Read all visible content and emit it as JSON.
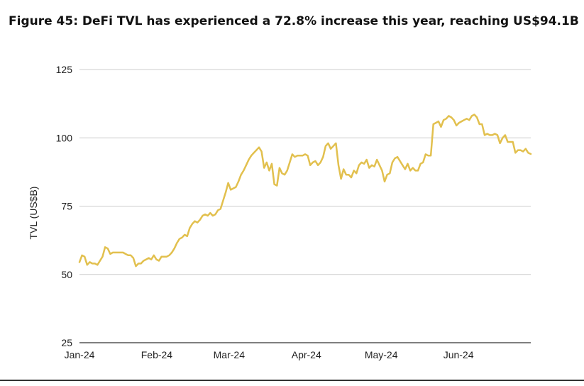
{
  "figure": {
    "title": "Figure 45: DeFi TVL has experienced a 72.8% increase this year, reaching US$94.1B"
  },
  "chart_data": {
    "type": "line",
    "title": "Figure 45: DeFi TVL has experienced a 72.8% increase this year, reaching US$94.1B",
    "xlabel": "",
    "ylabel": "TVL (US$B)",
    "ylim": [
      25,
      125
    ],
    "yticks": [
      25,
      50,
      75,
      100,
      125
    ],
    "xticks": [
      "Jan-24",
      "Feb-24",
      "Mar-24",
      "Apr-24",
      "May-24",
      "Jun-24"
    ],
    "grid": true,
    "legend": "none",
    "color": "#E2C04E",
    "x_start": "2024-01-01",
    "x_end": "2024-06-30",
    "series": [
      {
        "values": [
          54.5,
          57.0,
          56.5,
          53.5,
          54.5,
          54.0,
          54.0,
          53.5,
          55.0,
          56.5,
          60.0,
          59.5,
          57.5,
          58.0,
          58.0,
          58.0,
          58.0,
          58.0,
          57.5,
          57.0,
          57.0,
          56.0,
          53.0,
          54.0,
          54.0,
          55.0,
          55.5,
          56.0,
          55.5,
          57.0,
          55.5,
          55.0,
          56.5,
          56.5,
          56.5,
          57.0,
          58.0,
          59.5,
          61.5,
          63.0,
          63.5,
          64.5,
          64.0,
          67.0,
          68.5,
          69.5,
          69.0,
          70.0,
          71.5,
          72.0,
          71.5,
          72.5,
          71.5,
          72.0,
          73.5,
          74.0,
          77.0,
          80.0,
          83.5,
          81.0,
          81.5,
          82.0,
          84.0,
          86.5,
          88.0,
          90.0,
          92.0,
          93.5,
          94.5,
          95.5,
          96.5,
          95.0,
          89.0,
          91.0,
          88.0,
          90.5,
          83.0,
          82.5,
          89.0,
          87.0,
          86.5,
          88.0,
          91.0,
          94.0,
          93.0,
          93.5,
          93.5,
          93.5,
          94.0,
          93.5,
          90.0,
          91.0,
          91.5,
          90.0,
          91.0,
          93.0,
          97.0,
          98.0,
          96.0,
          97.0,
          98.0,
          90.0,
          85.0,
          88.5,
          86.5,
          86.5,
          85.5,
          88.0,
          87.0,
          90.0,
          91.0,
          90.5,
          92.0,
          89.0,
          90.0,
          89.5,
          92.0,
          90.0,
          88.0,
          84.0,
          86.5,
          87.0,
          91.0,
          92.5,
          93.0,
          91.5,
          90.0,
          88.5,
          90.5,
          88.0,
          89.0,
          88.0,
          88.0,
          90.5,
          91.0,
          94.0,
          93.5,
          93.5,
          105.0,
          105.5,
          106.0,
          104.0,
          106.5,
          107.0,
          108.0,
          107.5,
          106.5,
          104.5,
          105.5,
          106.0,
          106.5,
          107.0,
          106.5,
          108.0,
          108.5,
          107.5,
          105.0,
          105.0,
          101.0,
          101.5,
          101.0,
          101.0,
          101.5,
          101.0,
          98.0,
          100.0,
          101.0,
          98.5,
          98.5,
          98.5,
          94.5,
          95.5,
          95.5,
          95.0,
          96.0,
          94.5,
          94.1
        ]
      }
    ]
  }
}
